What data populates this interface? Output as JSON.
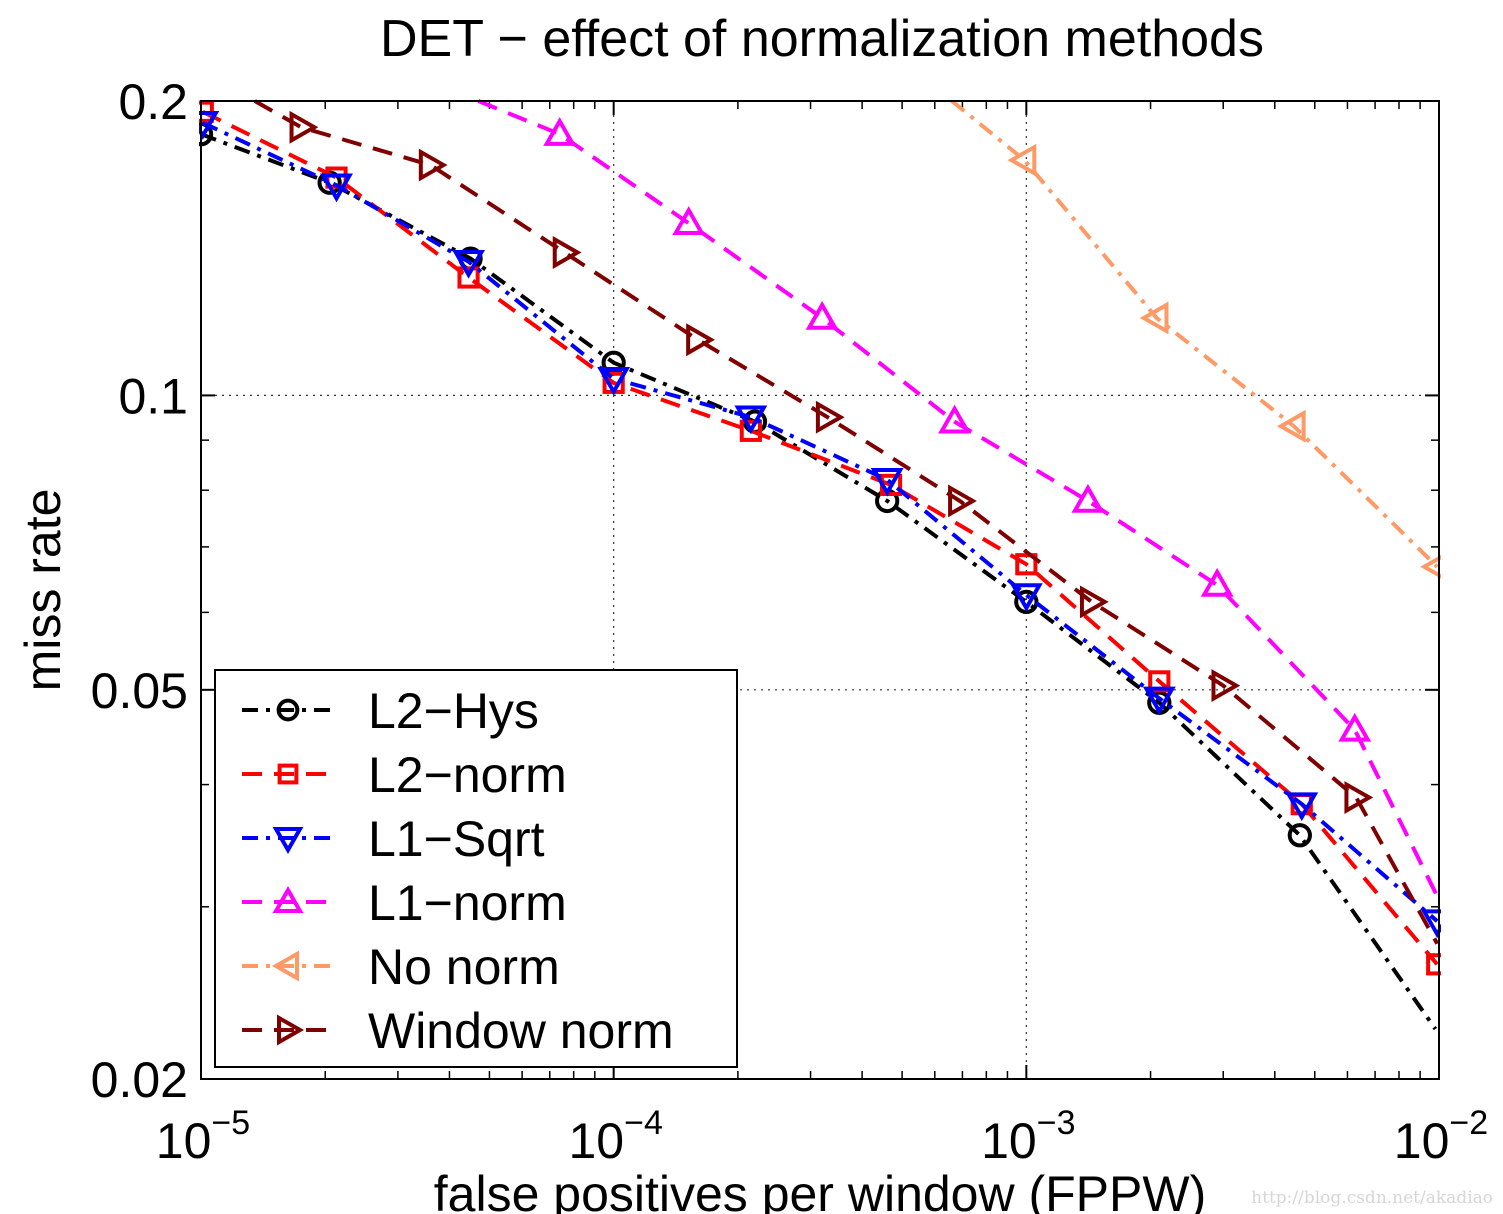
{
  "chart_data": {
    "type": "line",
    "title": "DET − effect of normalization methods",
    "xlabel": "false positives per window (FPPW)",
    "ylabel": "miss rate",
    "x_scale": "log",
    "y_scale": "log",
    "xlim": [
      1e-05,
      0.01
    ],
    "ylim": [
      0.02,
      0.2
    ],
    "grid": true,
    "legend_position": "bottom-left",
    "x_ticks": [
      {
        "value": 1e-05,
        "base": "10",
        "exp": "−5"
      },
      {
        "value": 0.0001,
        "base": "10",
        "exp": "−4"
      },
      {
        "value": 0.001,
        "base": "10",
        "exp": "−3"
      },
      {
        "value": 0.01,
        "base": "10",
        "exp": "−2"
      }
    ],
    "y_ticks": [
      {
        "value": 0.2,
        "label": "0.2"
      },
      {
        "value": 0.1,
        "label": "0.1"
      },
      {
        "value": 0.05,
        "label": "0.05"
      },
      {
        "value": 0.02,
        "label": "0.02"
      }
    ],
    "series": [
      {
        "name": "L2−Hys",
        "color": "#000000",
        "dash": "dashdot",
        "marker": "circle",
        "x": [
          1e-05,
          2.05e-05,
          4.5e-05,
          0.0001,
          0.00022,
          0.00046,
          0.001,
          0.0021,
          0.0046,
          0.0098
        ],
        "y": [
          0.185,
          0.165,
          0.138,
          0.108,
          0.094,
          0.078,
          0.0615,
          0.0485,
          0.0355,
          0.0225
        ],
        "markers": [
          true,
          true,
          true,
          true,
          true,
          true,
          true,
          true,
          true,
          false
        ]
      },
      {
        "name": "L2−norm",
        "color": "#ff0000",
        "dash": "dashed",
        "marker": "square",
        "x": [
          1.01e-05,
          2.13e-05,
          4.45e-05,
          0.0001,
          0.000215,
          0.00047,
          0.001,
          0.0021,
          0.00465,
          0.0099
        ],
        "y": [
          0.195,
          0.167,
          0.132,
          0.103,
          0.092,
          0.081,
          0.0672,
          0.051,
          0.0382,
          0.0262
        ],
        "markers": [
          true,
          true,
          true,
          true,
          true,
          true,
          true,
          true,
          true,
          true
        ]
      },
      {
        "name": "L1−Sqrt",
        "color": "#0000ff",
        "dash": "dashdot",
        "marker": "triangle-down",
        "x": [
          1.01e-05,
          2.13e-05,
          4.45e-05,
          0.0001,
          0.000215,
          0.00046,
          0.001,
          0.0021,
          0.00465,
          0.0099
        ],
        "y": [
          0.19,
          0.164,
          0.137,
          0.104,
          0.095,
          0.082,
          0.0625,
          0.049,
          0.0382,
          0.029
        ],
        "markers": [
          true,
          true,
          true,
          true,
          true,
          true,
          true,
          true,
          true,
          true
        ]
      },
      {
        "name": "L1−norm",
        "color": "#ff00ff",
        "dash": "dashed",
        "marker": "triangle-up",
        "x": [
          4.7e-05,
          7.4e-05,
          0.000152,
          0.00032,
          0.00067,
          0.00141,
          0.0029,
          0.00625,
          0.01
        ],
        "y": [
          0.2,
          0.185,
          0.15,
          0.12,
          0.094,
          0.078,
          0.064,
          0.0455,
          0.0305
        ],
        "markers": [
          false,
          true,
          true,
          true,
          true,
          true,
          true,
          true,
          false
        ]
      },
      {
        "name": "No norm",
        "color": "#ff9966",
        "dash": "dashdot",
        "marker": "triangle-left",
        "x": [
          0.00066,
          0.00099,
          0.00207,
          0.00445,
          0.0099
        ],
        "y": [
          0.2,
          0.174,
          0.12,
          0.093,
          0.0668
        ],
        "markers": [
          false,
          true,
          true,
          true,
          true
        ]
      },
      {
        "name": "Window norm",
        "color": "#800000",
        "dash": "dashed",
        "marker": "triangle-right",
        "x": [
          1.35e-05,
          1.75e-05,
          3.6e-05,
          7.6e-05,
          0.00016,
          0.00033,
          0.00069,
          0.00144,
          0.003,
          0.0063,
          0.0099
        ],
        "y": [
          0.2,
          0.188,
          0.172,
          0.14,
          0.114,
          0.095,
          0.078,
          0.0615,
          0.0505,
          0.0388,
          0.0275
        ],
        "markers": [
          false,
          true,
          true,
          true,
          true,
          true,
          true,
          true,
          true,
          true,
          false
        ]
      }
    ]
  },
  "watermark": "http://blog.csdn.net/akadiao"
}
